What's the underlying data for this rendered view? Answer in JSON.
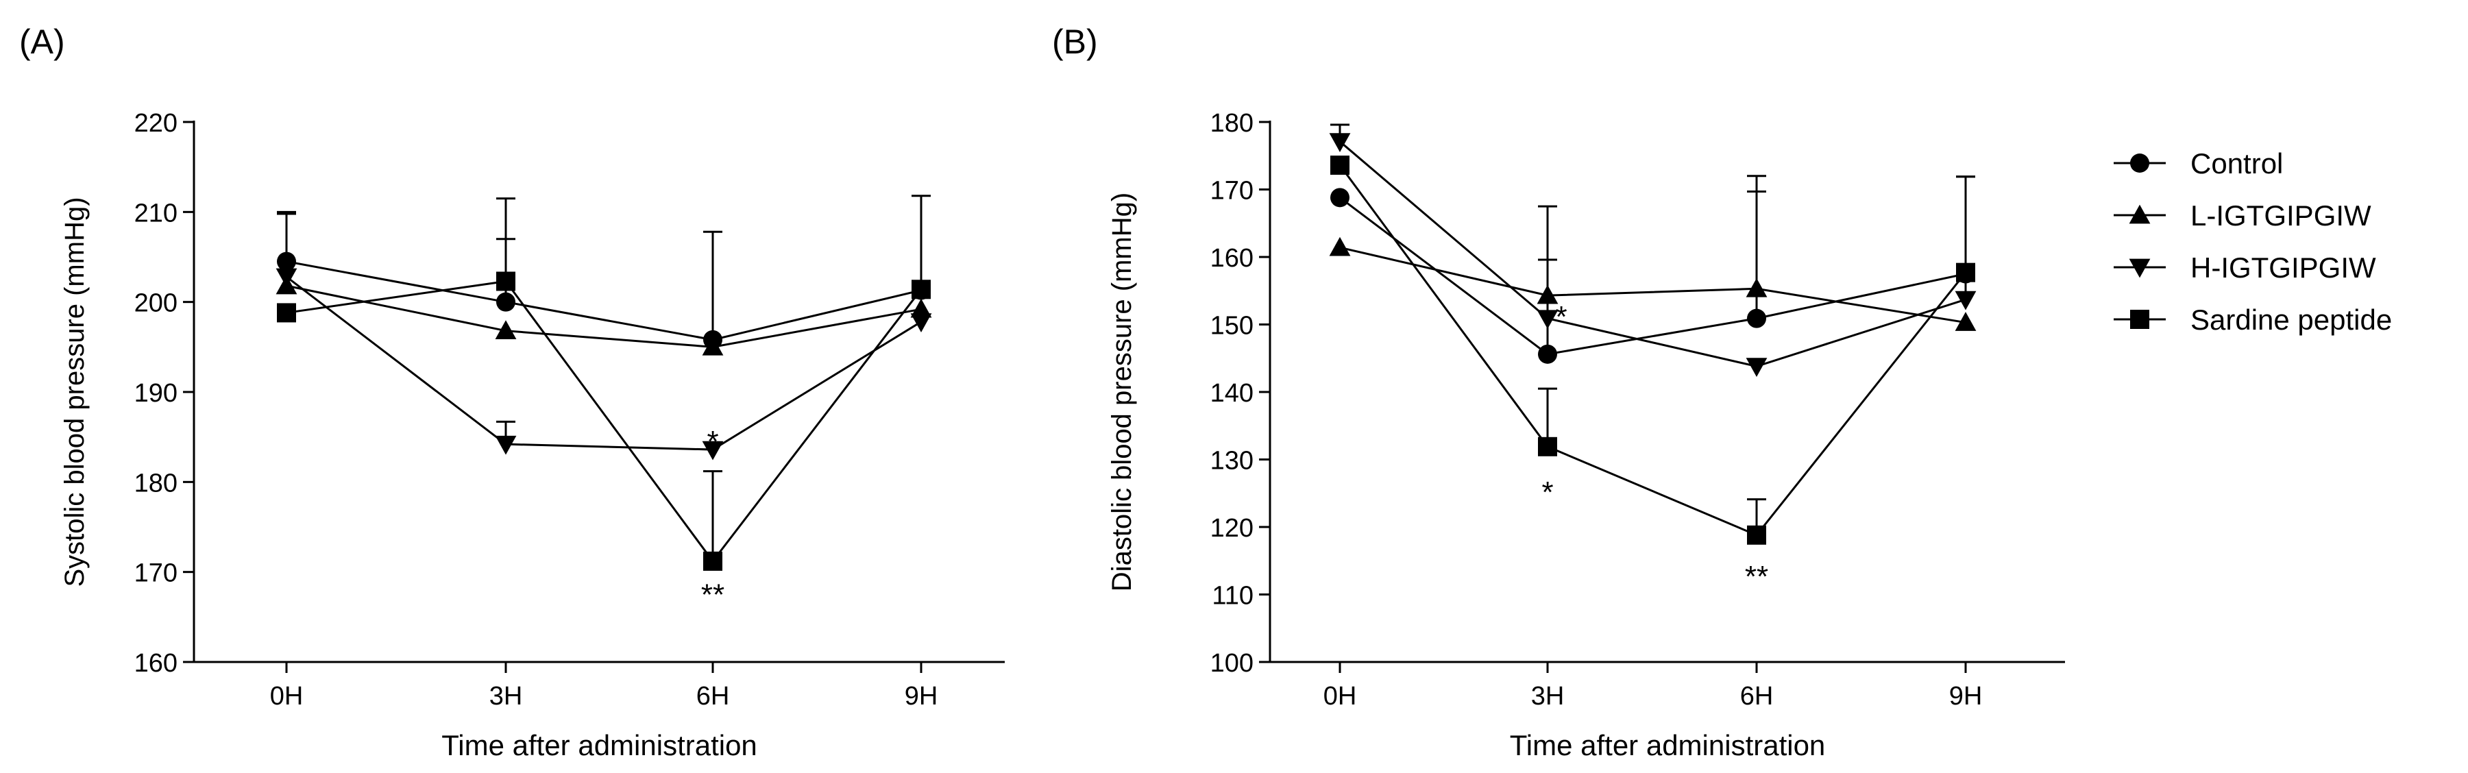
{
  "chart_data": [
    {
      "panel_label": "(A)",
      "type": "line",
      "xlabel": "Time after administration",
      "ylabel": "Systolic blood pressure (mmHg)",
      "categories": [
        "0H",
        "3H",
        "6H",
        "9H"
      ],
      "ylim": [
        160,
        220
      ],
      "yticks": [
        160,
        170,
        180,
        190,
        200,
        210,
        220
      ],
      "series": [
        {
          "name": "Control",
          "marker": "circle",
          "values": [
            204.5,
            200.0,
            195.8,
            201.3
          ],
          "error": [
            5.5,
            7.0,
            12.0,
            0
          ]
        },
        {
          "name": "L-IGTGIPGIW",
          "marker": "triangle-up",
          "values": [
            201.8,
            196.8,
            195.0,
            199.2
          ],
          "error": [
            8.0,
            0,
            0,
            0
          ]
        },
        {
          "name": "H-IGTGIPGIW",
          "marker": "triangle-down",
          "values": [
            202.8,
            184.2,
            183.6,
            197.8
          ],
          "error": [
            0,
            2.5,
            0,
            0
          ]
        },
        {
          "name": "Sardine peptide",
          "marker": "square",
          "values": [
            198.8,
            202.3,
            171.2,
            201.4
          ],
          "error": [
            0,
            9.2,
            10.0,
            10.4
          ]
        }
      ],
      "annotations": [
        {
          "category": "6H",
          "value": 185.5,
          "text": "*"
        },
        {
          "category": "6H",
          "value": 168.5,
          "text": "**"
        }
      ],
      "grid": false
    },
    {
      "panel_label": "(B)",
      "type": "line",
      "xlabel": "Time after administration",
      "ylabel": "Diastolic blood pressure (mmHg)",
      "categories": [
        "0H",
        "3H",
        "6H",
        "9H"
      ],
      "ylim": [
        100,
        180
      ],
      "yticks": [
        100,
        110,
        120,
        130,
        140,
        150,
        160,
        170,
        180
      ],
      "series": [
        {
          "name": "Control",
          "marker": "circle",
          "values": [
            168.8,
            145.6,
            150.9,
            157.5
          ],
          "error": [
            0,
            14.0,
            21.1,
            14.4
          ]
        },
        {
          "name": "L-IGTGIPGIW",
          "marker": "triangle-up",
          "values": [
            161.4,
            154.3,
            155.3,
            150.3
          ],
          "error": [
            0,
            13.2,
            14.4,
            0
          ]
        },
        {
          "name": "H-IGTGIPGIW",
          "marker": "triangle-down",
          "values": [
            177.1,
            150.9,
            143.8,
            153.7
          ],
          "error": [
            2.5,
            0,
            0,
            18.2
          ]
        },
        {
          "name": "Sardine peptide",
          "marker": "square",
          "values": [
            173.6,
            131.9,
            118.8,
            157.7
          ],
          "error": [
            0,
            8.6,
            5.3,
            0
          ]
        }
      ],
      "annotations": [
        {
          "category": "3H",
          "value": 152.5,
          "text": "*"
        },
        {
          "category": "3H",
          "value": 126.5,
          "text": "*"
        },
        {
          "category": "6H",
          "value": 114.0,
          "text": "**"
        }
      ],
      "grid": false,
      "legend": "right"
    }
  ],
  "legend": {
    "items": [
      {
        "name": "Control",
        "marker": "circle"
      },
      {
        "name": "L-IGTGIPGIW",
        "marker": "triangle-up"
      },
      {
        "name": "H-IGTGIPGIW",
        "marker": "triangle-down"
      },
      {
        "name": "Sardine peptide",
        "marker": "square"
      }
    ]
  },
  "colors": {
    "ink": "#000000",
    "background": "#ffffff"
  }
}
